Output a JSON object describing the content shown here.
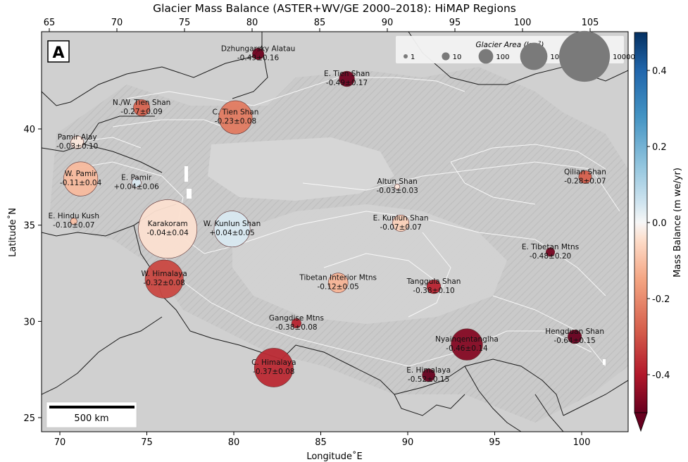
{
  "figure": {
    "title": "Glacier Mass Balance (ASTER+WV/GE 2000–2018): HiMAP Regions",
    "panel_label": "A",
    "xlabel": "Longitude˚E",
    "ylabel": "Latitude˚N",
    "colorbar_label": "Mass Balance (m we/yr)",
    "scalebar_label": "500 km",
    "size_legend_title": "Glacier Area (km",
    "size_legend_title_sup": "2",
    "size_legend_title_end": ")"
  },
  "chart_data": {
    "type": "scatter",
    "x_bottom_ticks": [
      70,
      75,
      80,
      85,
      90,
      95,
      100
    ],
    "x_top_ticks": [
      65,
      70,
      75,
      80,
      85,
      90,
      95,
      100,
      105
    ],
    "y_ticks": [
      25,
      30,
      35,
      40
    ],
    "colorbar_ticks": [
      "0.4",
      "0.2",
      "0.0",
      "-0.2",
      "-0.4"
    ],
    "colorbar_range": [
      -0.5,
      0.5
    ],
    "size_legend": [
      {
        "area": 1,
        "label": "1"
      },
      {
        "area": 10,
        "label": "10"
      },
      {
        "area": 100,
        "label": "100"
      },
      {
        "area": 1000,
        "label": "1000"
      },
      {
        "area": 10000,
        "label": "10000"
      }
    ],
    "regions": [
      {
        "name": "Dzhungarsky Alatau",
        "value": "-0.49±0.16",
        "mb": -0.49,
        "lon": 81.4,
        "lat": 43.9,
        "area": 40
      },
      {
        "name": "E. Tien Shan",
        "value": "-0.49±0.17",
        "mb": -0.49,
        "lon": 86.5,
        "lat": 42.6,
        "area": 120
      },
      {
        "name": "N./W. Tien Shan",
        "value": "-0.27±0.09",
        "mb": -0.27,
        "lon": 74.7,
        "lat": 41.1,
        "area": 150
      },
      {
        "name": "C. Tien Shan",
        "value": "-0.23±0.08",
        "mb": -0.23,
        "lon": 80.1,
        "lat": 40.6,
        "area": 2100
      },
      {
        "name": "Pamir Alay",
        "value": "-0.03±0.10",
        "mb": -0.03,
        "lon": 71.0,
        "lat": 39.3,
        "area": 60
      },
      {
        "name": "W. Pamir",
        "value": "-0.11±0.04",
        "mb": -0.11,
        "lon": 71.2,
        "lat": 37.4,
        "area": 2300
      },
      {
        "name": "E. Pamir",
        "value": "+0.04±0.06",
        "mb": 0.04,
        "lon": 74.4,
        "lat": 37.2,
        "area": 20
      },
      {
        "name": "Altun Shan",
        "value": "-0.03±0.03",
        "mb": -0.03,
        "lon": 89.4,
        "lat": 37.0,
        "area": 2
      },
      {
        "name": "Qilian Shan",
        "value": "-0.28±0.07",
        "mb": -0.28,
        "lon": 100.2,
        "lat": 37.5,
        "area": 60
      },
      {
        "name": "E. Kunlun Shan",
        "value": "-0.07±0.07",
        "mb": -0.07,
        "lon": 89.6,
        "lat": 35.1,
        "area": 150
      },
      {
        "name": "E. Hindu Kush",
        "value": "-0.10±0.07",
        "mb": -0.1,
        "lon": 70.8,
        "lat": 35.2,
        "area": 5
      },
      {
        "name": "Karakoram",
        "value": "-0.04±0.04",
        "mb": -0.04,
        "lon": 76.2,
        "lat": 34.8,
        "area": 17000
      },
      {
        "name": "W. Kunlun Shan",
        "value": "+0.04±0.05",
        "mb": 0.04,
        "lon": 79.9,
        "lat": 34.8,
        "area": 2800
      },
      {
        "name": "E. Tibetan Mtns",
        "value": "-0.48±0.20",
        "mb": -0.48,
        "lon": 98.2,
        "lat": 33.6,
        "area": 15
      },
      {
        "name": "W. Himalaya",
        "value": "-0.32±0.08",
        "mb": -0.32,
        "lon": 76.0,
        "lat": 32.2,
        "area": 3500
      },
      {
        "name": "Tibetan Interior Mtns",
        "value": "-0.12±0.05",
        "mb": -0.12,
        "lon": 86.0,
        "lat": 32.0,
        "area": 300
      },
      {
        "name": "Tanggula Shan",
        "value": "-0.38±0.10",
        "mb": -0.38,
        "lon": 91.5,
        "lat": 31.8,
        "area": 80
      },
      {
        "name": "Gangdise Mtns",
        "value": "-0.38±0.08",
        "mb": -0.38,
        "lon": 83.6,
        "lat": 29.9,
        "area": 20
      },
      {
        "name": "Hengduan Shan",
        "value": "-0.64±0.15",
        "mb": -0.64,
        "lon": 99.6,
        "lat": 29.2,
        "area": 80
      },
      {
        "name": "Nyainqentanglha",
        "value": "-0.46±0.14",
        "mb": -0.46,
        "lon": 93.4,
        "lat": 28.8,
        "area": 1700
      },
      {
        "name": "C. Himalaya",
        "value": "-0.37±0.08",
        "mb": -0.37,
        "lon": 82.3,
        "lat": 27.6,
        "area": 3700
      },
      {
        "name": "E. Himalaya",
        "value": "-0.52±0.15",
        "mb": -0.52,
        "lon": 91.2,
        "lat": 27.2,
        "area": 60
      }
    ]
  }
}
